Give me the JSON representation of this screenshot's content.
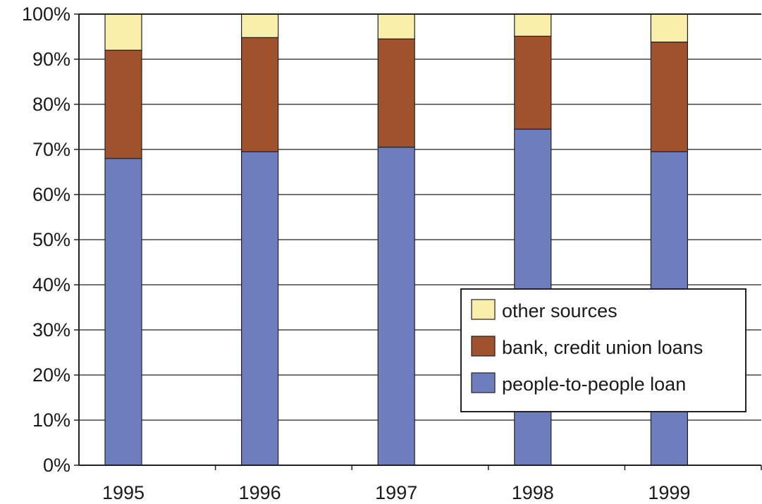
{
  "chart_data": {
    "type": "bar",
    "stacked": true,
    "normalized": true,
    "categories": [
      "1995",
      "1996",
      "1997",
      "1998",
      "1999"
    ],
    "series": [
      {
        "name": "people-to-people loan",
        "values": [
          68,
          69.5,
          70.5,
          74.5,
          69.5
        ],
        "color": "#6e7dbd"
      },
      {
        "name": "bank, credit union loans",
        "values": [
          24,
          25.3,
          24,
          20.6,
          24.3
        ],
        "color": "#a0522d"
      },
      {
        "name": "other sources",
        "values": [
          8,
          5.2,
          5.5,
          4.9,
          6.2
        ],
        "color": "#f9eeaa"
      }
    ],
    "y_ticks": [
      "0%",
      "10%",
      "20%",
      "30%",
      "40%",
      "50%",
      "60%",
      "70%",
      "80%",
      "90%",
      "100%"
    ],
    "ylim": [
      0,
      100
    ],
    "grid": true,
    "legend": {
      "position": "lower-right",
      "entries": [
        "other sources",
        "bank, credit union loans",
        "people-to-people loan"
      ]
    }
  }
}
